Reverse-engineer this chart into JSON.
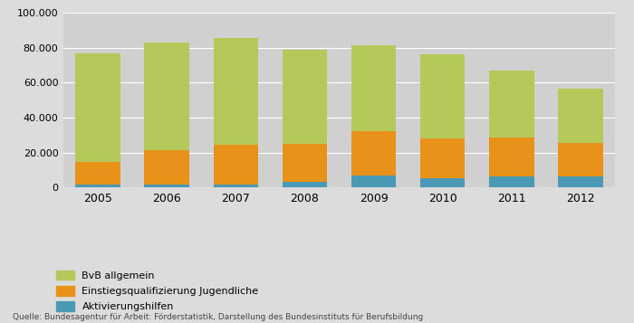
{
  "years": [
    "2005",
    "2006",
    "2007",
    "2008",
    "2009",
    "2010",
    "2011",
    "2012"
  ],
  "bvb": [
    62500,
    61500,
    61000,
    54000,
    49500,
    48500,
    38500,
    31000
  ],
  "einstieg": [
    13000,
    20000,
    23000,
    22000,
    25000,
    23000,
    22000,
    19500
  ],
  "aktivierung": [
    1500,
    1500,
    1500,
    3000,
    7000,
    5000,
    6500,
    6000
  ],
  "color_bvb": "#b5c95a",
  "color_einstieg": "#e8921a",
  "color_aktivierung": "#4a9ab5",
  "legend_bvb": "BvB allgemein",
  "legend_einstieg": "Einstiegsqualifizierung Jugendliche",
  "legend_aktivierung": "Aktivierungshilfen",
  "source_text": "Quelle: Bundesagentur für Arbeit: Förderstatistik, Darstellung des Bundesinstituts für Berufsbildung",
  "ylim": [
    0,
    100000
  ],
  "yticks": [
    0,
    20000,
    40000,
    60000,
    80000,
    100000
  ],
  "ytick_labels": [
    "0",
    "20.000",
    "40.000",
    "60.000",
    "80.000",
    "100.000"
  ],
  "background_color": "#dcdcdc",
  "plot_bg_color": "#d0d0d0",
  "bar_width": 0.65
}
